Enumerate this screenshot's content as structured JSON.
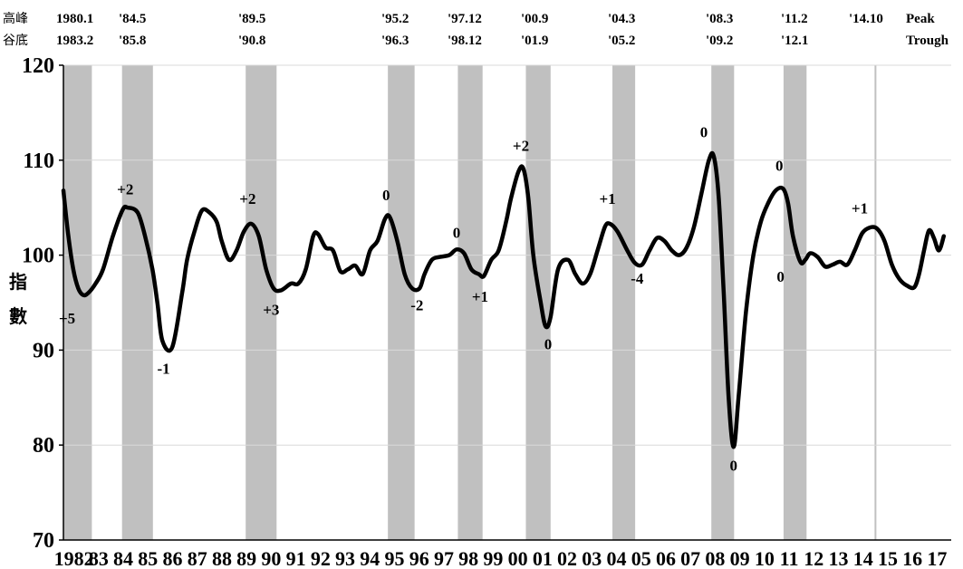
{
  "chart_data": {
    "type": "line",
    "header": {
      "peak_label_cn": "高峰",
      "trough_label_cn": "谷底",
      "peak_label_en": "Peak",
      "trough_label_en": "Trough",
      "peaks": [
        "1980.1",
        "'84.5",
        "'89.5",
        "'95.2",
        "'97.12",
        "'00.9",
        "'04.3",
        "'08.3",
        "'11.2",
        "'14.10"
      ],
      "troughs": [
        "1983.2",
        "'85.8",
        "'90.8",
        "'96.3",
        "'98.12",
        "'01.9",
        "'05.2",
        "'09.2",
        "'12.1",
        ""
      ]
    },
    "ylabel": "指數",
    "ylim": [
      70,
      120
    ],
    "yticks": [
      70,
      80,
      90,
      100,
      110,
      120
    ],
    "xlim": [
      1982.0,
      2017.9
    ],
    "xtick_labels": [
      "1982",
      "83",
      "84",
      "85",
      "86",
      "87",
      "88",
      "89",
      "90",
      "91",
      "92",
      "93",
      "94",
      "95",
      "96",
      "97",
      "98",
      "99",
      "00",
      "01",
      "02",
      "03",
      "04",
      "05",
      "06",
      "07",
      "08",
      "09",
      "10",
      "11",
      "12",
      "13",
      "14",
      "15",
      "16",
      "17"
    ],
    "grid": true,
    "recession_bands": [
      [
        1982.0,
        1983.15
      ],
      [
        1984.37,
        1985.62
      ],
      [
        1989.37,
        1990.62
      ],
      [
        1995.12,
        1996.2
      ],
      [
        1997.95,
        1998.95
      ],
      [
        2000.7,
        2001.7
      ],
      [
        2004.2,
        2005.12
      ],
      [
        2008.2,
        2009.12
      ],
      [
        2011.12,
        2012.05
      ],
      [
        2014.8,
        2014.87
      ]
    ],
    "series": [
      {
        "x": [
          1982.0,
          1982.2,
          1982.4,
          1982.6,
          1982.8,
          1983.0,
          1983.3,
          1983.6,
          1984.0,
          1984.4,
          1984.6,
          1985.0,
          1985.3,
          1985.6,
          1985.8,
          1986.0,
          1986.4,
          1986.8,
          1987.0,
          1987.3,
          1987.6,
          1987.9,
          1988.2,
          1988.4,
          1988.7,
          1989.0,
          1989.3,
          1989.6,
          1989.9,
          1990.2,
          1990.5,
          1990.8,
          1991.2,
          1991.5,
          1991.8,
          1992.1,
          1992.3,
          1992.6,
          1992.9,
          1993.2,
          1993.5,
          1993.8,
          1994.1,
          1994.4,
          1994.7,
          1995.0,
          1995.2,
          1995.5,
          1995.8,
          1996.1,
          1996.4,
          1996.6,
          1996.9,
          1997.2,
          1997.6,
          1997.9,
          1998.2,
          1998.5,
          1998.8,
          1999.0,
          1999.3,
          1999.6,
          1999.9,
          2000.1,
          2000.4,
          2000.6,
          2000.8,
          2001.0,
          2001.3,
          2001.5,
          2001.7,
          2002.0,
          2002.4,
          2002.7,
          2003.0,
          2003.3,
          2003.6,
          2003.9,
          2004.1,
          2004.4,
          2004.8,
          2005.1,
          2005.4,
          2005.7,
          2006.0,
          2006.3,
          2006.6,
          2006.9,
          2007.2,
          2007.5,
          2007.8,
          2008.1,
          2008.3,
          2008.5,
          2008.7,
          2008.9,
          2009.1,
          2009.3,
          2009.6,
          2009.9,
          2010.2,
          2010.5,
          2010.8,
          2011.1,
          2011.3,
          2011.5,
          2011.8,
          2012.0,
          2012.2,
          2012.5,
          2012.8,
          2013.1,
          2013.4,
          2013.7,
          2014.0,
          2014.3,
          2014.6,
          2014.9,
          2015.2,
          2015.5,
          2015.8,
          2016.1,
          2016.4,
          2016.6,
          2016.8,
          2017.0,
          2017.2,
          2017.4,
          2017.6
        ],
        "y": [
          106.8,
          102.0,
          98.5,
          96.5,
          95.8,
          96.0,
          97.0,
          98.5,
          102.0,
          104.8,
          105.0,
          104.5,
          102.0,
          98.5,
          95.0,
          91.0,
          90.3,
          96.0,
          99.5,
          102.5,
          104.7,
          104.5,
          103.5,
          101.5,
          99.5,
          100.5,
          102.5,
          103.3,
          102.0,
          98.5,
          96.5,
          96.3,
          97.0,
          97.0,
          98.5,
          102.0,
          102.2,
          100.8,
          100.5,
          98.3,
          98.5,
          98.9,
          98.0,
          100.5,
          101.5,
          103.8,
          104.0,
          101.5,
          98.0,
          96.5,
          96.5,
          98.0,
          99.5,
          99.8,
          100.0,
          100.6,
          100.2,
          98.5,
          98.0,
          97.8,
          99.5,
          100.5,
          103.5,
          106.0,
          108.8,
          109.1,
          106.0,
          100.0,
          95.0,
          92.5,
          93.5,
          98.5,
          99.5,
          98.0,
          97.0,
          98.0,
          100.5,
          103.0,
          103.3,
          102.5,
          100.5,
          99.2,
          99.0,
          100.5,
          101.8,
          101.5,
          100.5,
          100.0,
          100.8,
          103.0,
          106.5,
          110.0,
          110.4,
          106.0,
          96.0,
          85.0,
          79.8,
          85.0,
          94.0,
          100.0,
          103.5,
          105.5,
          106.8,
          107.0,
          105.5,
          102.0,
          99.3,
          99.5,
          100.2,
          99.8,
          98.8,
          99.0,
          99.3,
          99.0,
          100.5,
          102.3,
          102.9,
          102.8,
          101.5,
          99.0,
          97.5,
          96.8,
          96.6,
          98.0,
          100.5,
          102.6,
          101.8,
          100.5,
          102.0
        ]
      }
    ],
    "annotations": [
      {
        "text": "+5",
        "x": 1982.15,
        "y": 92.8
      },
      {
        "text": "+2",
        "x": 1984.5,
        "y": 106.4
      },
      {
        "text": "-1",
        "x": 1986.05,
        "y": 87.5
      },
      {
        "text": "+2",
        "x": 1989.45,
        "y": 105.4
      },
      {
        "text": "+3",
        "x": 1990.4,
        "y": 93.7
      },
      {
        "text": "0",
        "x": 1995.05,
        "y": 105.8
      },
      {
        "text": "-2",
        "x": 1996.3,
        "y": 94.2
      },
      {
        "text": "0",
        "x": 1997.9,
        "y": 101.8
      },
      {
        "text": "+1",
        "x": 1998.85,
        "y": 95.1
      },
      {
        "text": "+2",
        "x": 2000.5,
        "y": 111.0
      },
      {
        "text": "0",
        "x": 2001.6,
        "y": 90.1
      },
      {
        "text": "+1",
        "x": 2004.0,
        "y": 105.4
      },
      {
        "text": "-4",
        "x": 2005.2,
        "y": 97.0
      },
      {
        "text": "0",
        "x": 2007.9,
        "y": 112.4
      },
      {
        "text": "0",
        "x": 2009.1,
        "y": 77.3
      },
      {
        "text": "0",
        "x": 2010.95,
        "y": 108.9
      },
      {
        "text": "0",
        "x": 2011.0,
        "y": 97.2
      },
      {
        "text": "+1",
        "x": 2014.2,
        "y": 104.4
      }
    ]
  }
}
